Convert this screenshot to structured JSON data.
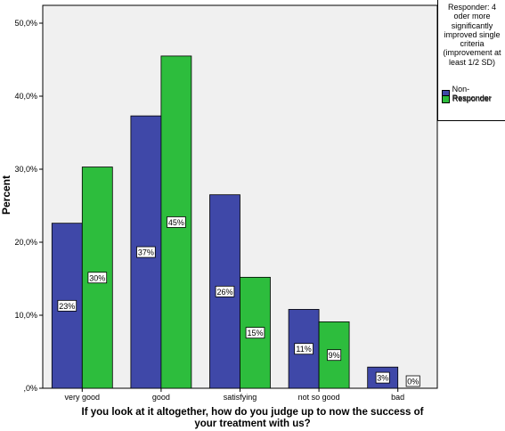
{
  "chart_data": {
    "type": "bar",
    "categories": [
      "very good",
      "good",
      "satisfying",
      "not so good",
      "bad"
    ],
    "series": [
      {
        "name": "Non-Responder",
        "color": "#3f48a8",
        "values": [
          22.6,
          37.3,
          26.5,
          10.8,
          2.9
        ],
        "labels": [
          "23%",
          "37%",
          "26%",
          "11%",
          "3%"
        ]
      },
      {
        "name": "Responder",
        "color": "#2dbd3d",
        "values": [
          30.3,
          45.5,
          15.2,
          9.1,
          0.0
        ],
        "labels": [
          "30%",
          "45%",
          "15%",
          "9%",
          "0%"
        ]
      }
    ],
    "ylabel": "Percent",
    "xlabel_lines": [
      "If you look at it altogether, how do you judge up to now the success of",
      "your treatment with us?"
    ],
    "yticks": [
      0,
      10,
      20,
      30,
      40,
      50
    ],
    "ytick_labels": [
      ",0%",
      "10,0%",
      "20,0%",
      "30,0%",
      "40,0%",
      "50,0%"
    ],
    "ylim": [
      0,
      50
    ],
    "grid": false,
    "plot_background": "#f0f0f0",
    "legend": {
      "title": "Responder: 4 oder more significantly improved single criteria (improvement at least 1/2 SD)",
      "placement": "right"
    }
  }
}
